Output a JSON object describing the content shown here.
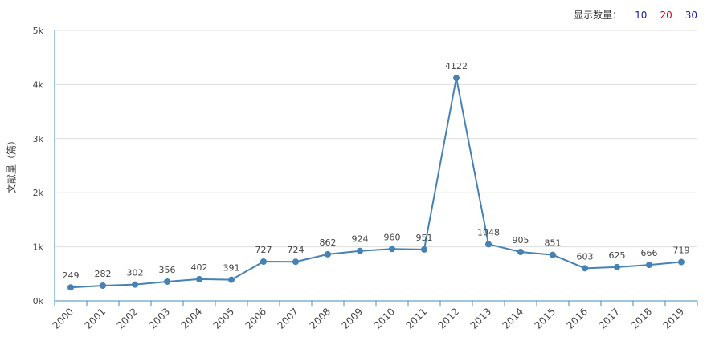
{
  "toolbar": {
    "label": "显示数量：",
    "options": [
      {
        "label": "10",
        "color": "#1a1aa8"
      },
      {
        "label": "20",
        "color": "#d0021b"
      },
      {
        "label": "30",
        "color": "#1a1aa8"
      }
    ]
  },
  "colors": {
    "line": "#4682b4",
    "axis": "#3c8dbc",
    "grid": "#dddddd",
    "tick_text": "#444444",
    "label_text": "#444444"
  },
  "chart_data": {
    "type": "line",
    "title": "",
    "xlabel": "",
    "ylabel": "文献量（篇）",
    "ylim": [
      0,
      5000
    ],
    "yticks": [
      0,
      1000,
      2000,
      3000,
      4000,
      5000
    ],
    "ytick_labels": [
      "0k",
      "1k",
      "2k",
      "3k",
      "4k",
      "5k"
    ],
    "grid": true,
    "categories": [
      "2000",
      "2001",
      "2002",
      "2003",
      "2004",
      "2005",
      "2006",
      "2007",
      "2008",
      "2009",
      "2010",
      "2011",
      "2012",
      "2013",
      "2014",
      "2015",
      "2016",
      "2017",
      "2018",
      "2019"
    ],
    "series": [
      {
        "values": [
          249,
          282,
          302,
          356,
          402,
          391,
          727,
          724,
          862,
          924,
          960,
          951,
          4122,
          1048,
          905,
          851,
          603,
          625,
          666,
          719
        ]
      }
    ]
  }
}
